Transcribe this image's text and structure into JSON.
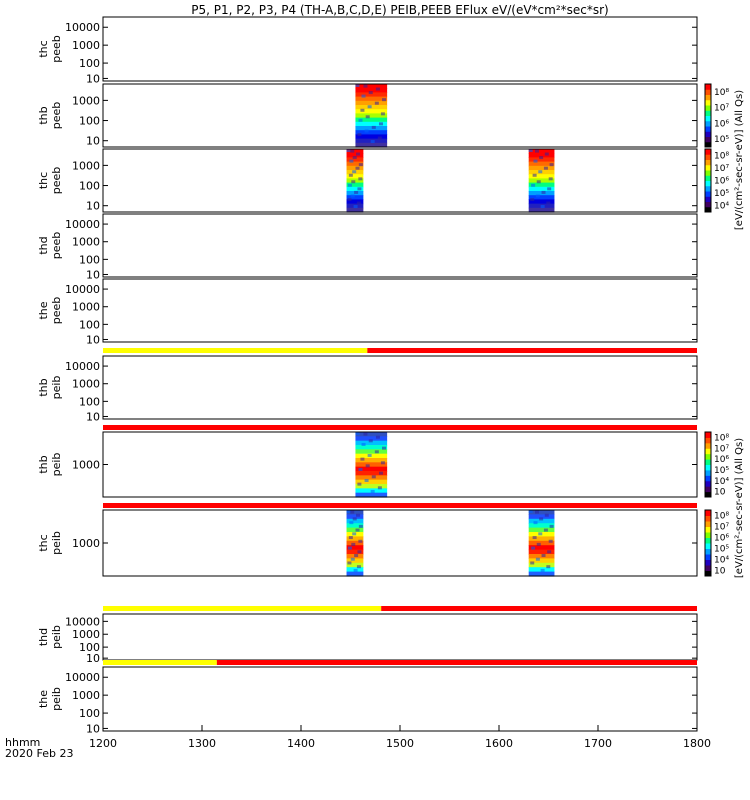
{
  "title": "P5, P1, P2, P3, P4 (TH-A,B,C,D,E) PEIB,PEEB EFlux eV/(eV*cm²*sec*sr)",
  "footer": {
    "time_label": "hhmm",
    "date_label": "2020 Feb 23"
  },
  "colorbars": [
    {
      "label": "[eV/(cm²-sec-sr-eV)] (All Qs)",
      "ticks": [
        "10⁵",
        "10⁶",
        "10⁷",
        "10⁸"
      ]
    },
    {
      "label": "[eV/(cm²-sec-sr-eV)] (All Qs)",
      "ticks": [
        "10⁴",
        "10⁵",
        "10⁶",
        "10⁷",
        "10⁸"
      ]
    },
    {
      "label": "[eV/(cm²-sec-sr-eV)] (All Qs)",
      "ticks": [
        "10⁳",
        "10⁴",
        "10⁵",
        "10⁶",
        "10⁷",
        "10⁸"
      ]
    },
    {
      "label": "[eV/(cm²-sec-sr-eV)] (All Qs)",
      "ticks": [
        "10⁳",
        "10⁴",
        "10⁵",
        "10⁶",
        "10⁷",
        "10⁸"
      ]
    }
  ],
  "chart_data": {
    "type": "heatmap",
    "x_range": [
      1200,
      1800
    ],
    "x_ticks": [
      "1200",
      "1300",
      "1400",
      "1500",
      "1600",
      "1700",
      "1800"
    ],
    "panels": [
      {
        "label1": "thc",
        "label2": "peeb",
        "yticks": [
          "10000",
          "1000",
          "100",
          "10"
        ],
        "blocks": []
      },
      {
        "label1": "thb",
        "label2": "peeb",
        "yticks": [
          "1000",
          "100",
          "10"
        ],
        "blocks": [
          {
            "x0": 1455,
            "x1": 1487,
            "profile": "electron"
          }
        ]
      },
      {
        "label1": "thc",
        "label2": "peeb",
        "yticks": [
          "1000",
          "100",
          "10"
        ],
        "blocks": [
          {
            "x0": 1446,
            "x1": 1463,
            "profile": "electron"
          },
          {
            "x0": 1630,
            "x1": 1656,
            "profile": "electron"
          }
        ]
      },
      {
        "label1": "thd",
        "label2": "peeb",
        "yticks": [
          "10000",
          "1000",
          "100",
          "10"
        ],
        "blocks": []
      },
      {
        "label1": "the",
        "label2": "peeb",
        "yticks": [
          "10000",
          "1000",
          "100",
          "10"
        ],
        "blocks": []
      },
      {
        "label1": "thb",
        "label2": "peib",
        "yticks": [
          "10000",
          "1000",
          "100",
          "10"
        ],
        "blocks": []
      },
      {
        "label1": "thb",
        "label2": "peib",
        "yticks": [
          "1000"
        ],
        "blocks": [
          {
            "x0": 1455,
            "x1": 1487,
            "profile": "ion"
          }
        ]
      },
      {
        "label1": "thc",
        "label2": "peib",
        "yticks": [
          "1000"
        ],
        "blocks": [
          {
            "x0": 1446,
            "x1": 1463,
            "profile": "ion"
          },
          {
            "x0": 1630,
            "x1": 1656,
            "profile": "ion"
          }
        ]
      },
      {
        "label1": "thd",
        "label2": "peib",
        "yticks": [
          "10000",
          "1000",
          "100",
          "10"
        ],
        "blocks": []
      },
      {
        "label1": "the",
        "label2": "peib",
        "yticks": [
          "10000",
          "1000",
          "100",
          "10"
        ],
        "blocks": []
      }
    ],
    "mode_bars": [
      {
        "segments": [
          {
            "x0": 1200,
            "x1": 1467,
            "color": "#ffff00"
          },
          {
            "x0": 1467,
            "x1": 1800,
            "color": "#ff0000"
          }
        ]
      },
      {
        "segments": [
          {
            "x0": 1200,
            "x1": 1800,
            "color": "#ff0000"
          }
        ]
      },
      {
        "segments": [
          {
            "x0": 1200,
            "x1": 1800,
            "color": "#ff0000"
          }
        ]
      },
      {
        "segments": [
          {
            "x0": 1200,
            "x1": 1481,
            "color": "#ffff00"
          },
          {
            "x0": 1481,
            "x1": 1800,
            "color": "#ff0000"
          }
        ]
      },
      {
        "segments": [
          {
            "x0": 1200,
            "x1": 1315,
            "color": "#ffff00"
          },
          {
            "x0": 1315,
            "x1": 1800,
            "color": "#ff0000"
          }
        ]
      }
    ]
  }
}
